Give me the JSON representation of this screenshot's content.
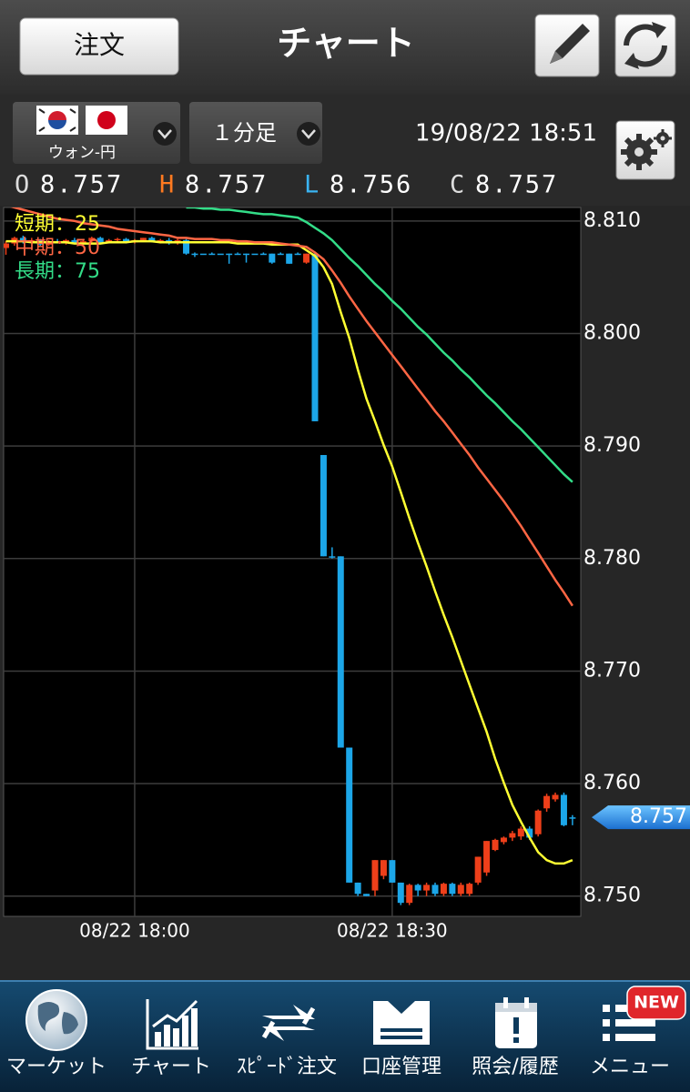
{
  "header": {
    "order_button": "注文",
    "title": "チャート"
  },
  "toolbar": {
    "pair": "ウォン-円",
    "timeframe": "１分足",
    "datetime": "19/08/22 18:51"
  },
  "ohlc": [
    {
      "label": "O",
      "value": 8.757
    },
    {
      "label": "H",
      "value": 8.757
    },
    {
      "label": "L",
      "value": 8.756
    },
    {
      "label": "C",
      "value": 8.757
    }
  ],
  "chart_data": {
    "type": "candlestick",
    "categories": [
      null,
      null,
      null,
      null,
      null,
      null,
      null,
      null,
      null,
      null,
      null,
      null,
      null,
      null,
      null,
      "08/22 18:00",
      null,
      null,
      null,
      null,
      null,
      null,
      null,
      null,
      null,
      null,
      null,
      null,
      null,
      null,
      null,
      null,
      null,
      null,
      null,
      null,
      null,
      null,
      null,
      null,
      null,
      null,
      null,
      null,
      null,
      "08/22 18:30",
      null,
      null,
      null,
      null,
      null,
      null,
      null,
      null,
      null,
      null,
      null,
      null,
      null,
      null,
      null,
      null,
      null,
      null,
      null,
      null,
      null
    ],
    "open": [
      8.8076,
      8.808,
      8.8085,
      8.8082,
      8.8083,
      8.8079,
      8.8082,
      8.8081,
      8.8083,
      8.808,
      8.8082,
      8.8085,
      8.8081,
      8.8083,
      8.8084,
      8.8081,
      8.8083,
      8.8085,
      8.8082,
      8.8083,
      8.808,
      8.8083,
      8.8071,
      8.8071,
      8.8071,
      8.8071,
      8.8071,
      8.8071,
      8.8071,
      8.8071,
      8.8071,
      8.8071,
      8.8071,
      8.8071,
      8.8071,
      8.8063,
      8.8071,
      8.7892,
      8.7802,
      8.7802,
      8.7632,
      8.7512,
      8.7502,
      8.7505,
      8.7518,
      8.7532,
      8.7512,
      8.7494,
      8.751,
      8.7505,
      8.751,
      8.7502,
      8.7511,
      8.7502,
      8.7502,
      8.7512,
      8.7521,
      8.7541,
      8.7548,
      8.7552,
      8.7553,
      8.756,
      8.7555,
      8.7578,
      8.7586,
      8.759,
      8.757
    ],
    "high": [
      8.8082,
      8.8086,
      8.8087,
      8.8085,
      8.8084,
      8.8083,
      8.8084,
      8.8084,
      8.8085,
      8.8083,
      8.8086,
      8.8086,
      8.8084,
      8.8085,
      8.8085,
      8.8084,
      8.8085,
      8.8086,
      8.8084,
      8.8085,
      8.8084,
      8.8084,
      8.8072,
      8.8071,
      8.8072,
      8.8071,
      8.8071,
      8.8072,
      8.8071,
      8.8071,
      8.8072,
      8.8071,
      8.8072,
      8.8071,
      8.8072,
      8.8071,
      8.8071,
      8.7892,
      8.781,
      8.7802,
      8.7632,
      8.7512,
      8.7502,
      8.7532,
      8.7532,
      8.7532,
      8.7512,
      8.7511,
      8.7511,
      8.7512,
      8.7512,
      8.7512,
      8.7512,
      8.7512,
      8.7512,
      8.7535,
      8.7549,
      8.7551,
      8.7553,
      8.7558,
      8.7562,
      8.7562,
      8.7577,
      8.7591,
      8.7592,
      8.7592,
      8.7572
    ],
    "low": [
      8.807,
      8.8078,
      8.808,
      8.808,
      8.8078,
      8.8078,
      8.808,
      8.8079,
      8.808,
      8.8079,
      8.8081,
      8.808,
      8.808,
      8.8082,
      8.808,
      8.808,
      8.8082,
      8.8081,
      8.808,
      8.8079,
      8.8079,
      8.807,
      8.8068,
      8.8071,
      8.807,
      8.8071,
      8.8062,
      8.8071,
      8.8063,
      8.8071,
      8.807,
      8.8062,
      8.807,
      8.8062,
      8.807,
      8.8062,
      8.7922,
      8.7802,
      8.78,
      8.7632,
      8.7512,
      8.75,
      8.75,
      8.75,
      8.7515,
      8.7512,
      8.7492,
      8.7492,
      8.75,
      8.75,
      8.75,
      8.75,
      8.75,
      8.75,
      8.75,
      8.751,
      8.7518,
      8.754,
      8.7546,
      8.7549,
      8.755,
      8.755,
      8.7553,
      8.7575,
      8.7584,
      8.7562,
      8.7563
    ],
    "close": [
      8.808,
      8.8085,
      8.8082,
      8.8083,
      8.8079,
      8.8082,
      8.8081,
      8.8083,
      8.808,
      8.8082,
      8.8085,
      8.8081,
      8.8083,
      8.8084,
      8.8081,
      8.8083,
      8.8085,
      8.8082,
      8.8083,
      8.808,
      8.8083,
      8.8071,
      8.8071,
      8.8071,
      8.8071,
      8.8071,
      8.8071,
      8.8071,
      8.8071,
      8.8071,
      8.8071,
      8.8063,
      8.8071,
      8.8062,
      8.8071,
      8.8071,
      8.7922,
      8.7802,
      8.7802,
      8.7632,
      8.7512,
      8.7502,
      8.75,
      8.7532,
      8.7532,
      8.7512,
      8.7494,
      8.751,
      8.7505,
      8.751,
      8.7502,
      8.7511,
      8.7502,
      8.751,
      8.7511,
      8.7535,
      8.7549,
      8.755,
      8.7552,
      8.7556,
      8.756,
      8.7552,
      8.7576,
      8.7589,
      8.759,
      8.7563,
      8.757
    ],
    "up_color": "#ee3f1a",
    "down_color": "#1ca6e8",
    "series": [
      {
        "name": "短期：25",
        "color": "#ffff33",
        "values": [
          8.8082,
          8.8082,
          8.8082,
          8.8081,
          8.8081,
          8.8081,
          8.8081,
          8.8081,
          8.808,
          8.808,
          8.808,
          8.808,
          8.8081,
          8.8081,
          8.8081,
          8.8082,
          8.8082,
          8.8082,
          8.8081,
          8.8081,
          8.8081,
          8.8081,
          8.8081,
          8.8081,
          8.8081,
          8.8081,
          8.8081,
          8.808,
          8.808,
          8.808,
          8.808,
          8.8079,
          8.8079,
          8.8079,
          8.8079,
          8.8074,
          8.8069,
          8.8059,
          8.8044,
          8.8019,
          8.7996,
          8.7968,
          8.7942,
          8.7922,
          8.7901,
          8.7882,
          8.7859,
          8.7836,
          8.7814,
          8.7793,
          8.7771,
          8.775,
          8.773,
          8.7709,
          8.7688,
          8.7667,
          8.7646,
          8.7622,
          8.7601,
          8.7581,
          8.7566,
          8.7552,
          8.7539,
          8.7532,
          8.7529,
          8.7529,
          8.7532
        ]
      },
      {
        "name": "中期：50",
        "color": "#ff6644",
        "values": [
          8.8114,
          8.8112,
          8.811,
          8.8108,
          8.8106,
          8.8104,
          8.8102,
          8.8101,
          8.81,
          8.8098,
          8.8097,
          8.8096,
          8.8095,
          8.8093,
          8.8092,
          8.8091,
          8.809,
          8.8089,
          8.8088,
          8.8087,
          8.8085,
          8.8085,
          8.8084,
          8.8084,
          8.8084,
          8.8083,
          8.8083,
          8.8082,
          8.8082,
          8.8081,
          8.8081,
          8.8081,
          8.808,
          8.8079,
          8.8078,
          8.8077,
          8.8072,
          8.8066,
          8.8056,
          8.8045,
          8.8033,
          8.8022,
          8.8011,
          8.8001,
          8.7991,
          8.7981,
          8.7971,
          8.7961,
          8.7951,
          8.7941,
          8.7931,
          8.7922,
          8.7912,
          8.7902,
          8.7892,
          8.7881,
          8.7871,
          8.7861,
          8.7851,
          8.784,
          8.7829,
          8.7817,
          8.7805,
          8.7793,
          8.7781,
          8.777,
          8.7758
        ]
      },
      {
        "name": "長期：75",
        "color": "#33dd88",
        "values": [
          null,
          null,
          null,
          null,
          null,
          null,
          null,
          null,
          null,
          null,
          null,
          null,
          null,
          null,
          null,
          null,
          null,
          null,
          null,
          null,
          null,
          8.8112,
          8.8112,
          8.8111,
          8.8111,
          8.811,
          8.811,
          8.8109,
          8.8108,
          8.8107,
          8.8106,
          8.8106,
          8.8105,
          8.8104,
          8.8103,
          8.8099,
          8.8094,
          8.8089,
          8.8083,
          8.8075,
          8.8067,
          8.806,
          8.8052,
          8.8044,
          8.8037,
          8.8029,
          8.8022,
          8.8014,
          8.8006,
          8.7999,
          8.7991,
          8.7983,
          8.7976,
          8.7968,
          8.7961,
          8.7953,
          8.7945,
          8.7938,
          8.793,
          8.7922,
          8.7915,
          8.7907,
          8.7899,
          8.7891,
          8.7883,
          8.7875,
          8.7868
        ]
      }
    ],
    "ylim": [
      8.7482,
      8.8112
    ],
    "yticks": [
      {
        "value": 8.75,
        "label": "8.750"
      },
      {
        "value": 8.76,
        "label": "8.760"
      },
      {
        "value": 8.77,
        "label": "8.770"
      },
      {
        "value": 8.78,
        "label": "8.780"
      },
      {
        "value": 8.79,
        "label": "8.790"
      },
      {
        "value": 8.8,
        "label": "8.800"
      },
      {
        "value": 8.81,
        "label": "8.810"
      }
    ],
    "grid": true,
    "legend": "top-left",
    "current_price": 8.757
  },
  "nav": {
    "items": [
      "マーケット",
      "チャート",
      "ｽﾋﾟｰﾄﾞ注文",
      "口座管理",
      "照会/履歴",
      "メニュー"
    ],
    "badge": "NEW"
  }
}
